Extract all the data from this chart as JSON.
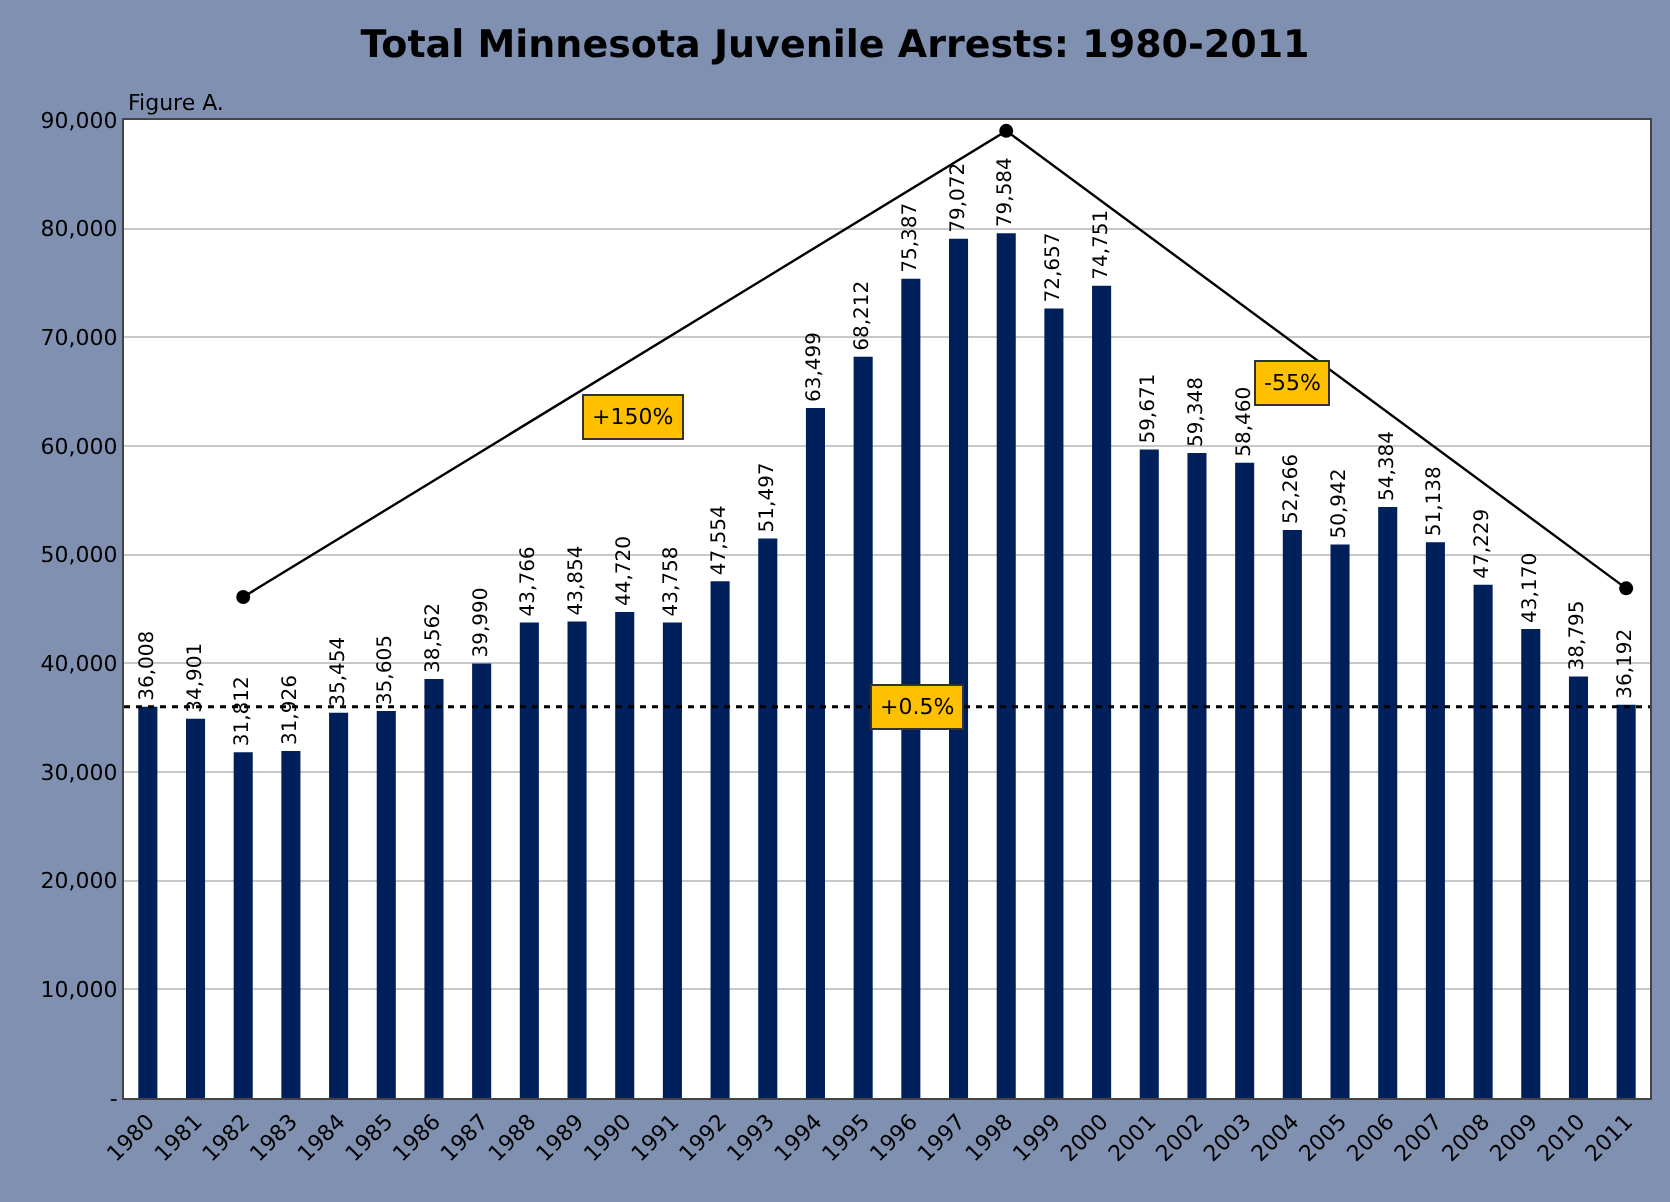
{
  "chart_data": {
    "type": "bar",
    "title": "Total Minnesota Juvenile Arrests: 1980-2011",
    "categories": [
      "1980",
      "1981",
      "1982",
      "1983",
      "1984",
      "1985",
      "1986",
      "1987",
      "1988",
      "1989",
      "1990",
      "1991",
      "1992",
      "1993",
      "1994",
      "1995",
      "1996",
      "1997",
      "1998",
      "1999",
      "2000",
      "2001",
      "2002",
      "2003",
      "2004",
      "2005",
      "2006",
      "2007",
      "2008",
      "2009",
      "2010",
      "2011"
    ],
    "series": [
      {
        "color": "#00205b",
        "values": [
          36008,
          34901,
          31812,
          31926,
          35454,
          35605,
          38562,
          39990,
          43766,
          43854,
          44720,
          43758,
          47554,
          51497,
          63499,
          68212,
          75387,
          79072,
          79584,
          72657,
          74751,
          59671,
          59348,
          58460,
          52266,
          50942,
          54384,
          51138,
          47229,
          43170,
          38795,
          36192
        ],
        "value_labels": [
          "36,008",
          "34,901",
          "31,812",
          "31,926",
          "35,454",
          "35,605",
          "38,562",
          "39,990",
          "43,766",
          "43,854",
          "44,720",
          "43,758",
          "47,554",
          "51,497",
          "63,499",
          "68,212",
          "75,387",
          "79,072",
          "79,584",
          "72,657",
          "74,751",
          "59,671",
          "59,348",
          "58,460",
          "52,266",
          "50,942",
          "54,384",
          "51,138",
          "47,229",
          "43,170",
          "38,795",
          "36,192"
        ]
      },
      {
        "type": "line",
        "color": "#000000",
        "values": [
          null,
          null,
          46100,
          null,
          null,
          null,
          null,
          null,
          null,
          null,
          null,
          null,
          null,
          null,
          null,
          null,
          null,
          null,
          89000,
          null,
          null,
          null,
          null,
          null,
          null,
          null,
          null,
          null,
          null,
          null,
          null,
          46900
        ],
        "marker": "circle"
      }
    ],
    "ylim": [
      0,
      90000
    ],
    "yticks": [
      {
        "value": 0,
        "label": "-"
      },
      {
        "value": 10000,
        "label": "10,000"
      },
      {
        "value": 20000,
        "label": "20,000"
      },
      {
        "value": 30000,
        "label": "30,000"
      },
      {
        "value": 40000,
        "label": "40,000"
      },
      {
        "value": 50000,
        "label": "50,000"
      },
      {
        "value": 60000,
        "label": "60,000"
      },
      {
        "value": 70000,
        "label": "70,000"
      },
      {
        "value": 80000,
        "label": "80,000"
      },
      {
        "value": 90000,
        "label": "90,000"
      }
    ],
    "grid": "y",
    "legend": false,
    "ref_lines": [
      {
        "axis": "y",
        "value": 36008,
        "color": "#000000",
        "line_style": "dotted"
      }
    ],
    "annotations": [
      "Figure A.",
      "+150%",
      "-55%",
      "+0.5%"
    ]
  }
}
